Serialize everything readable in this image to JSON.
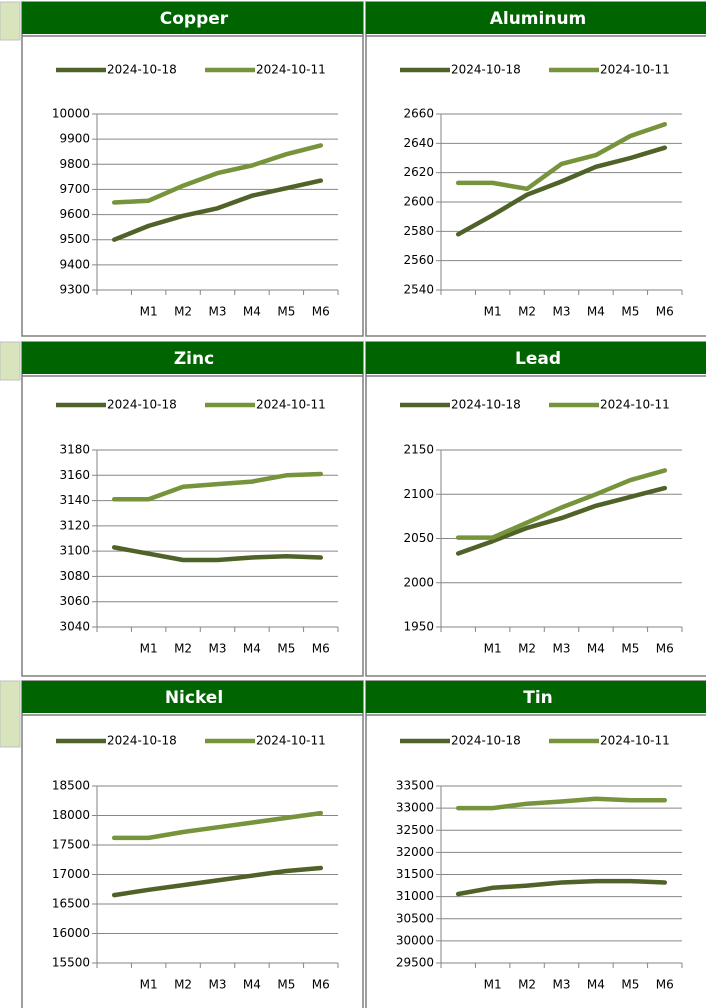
{
  "chart_data": [
    {
      "type": "line",
      "title": "Copper",
      "categories": [
        null,
        "M1",
        "M2",
        "M3",
        "M4",
        "M5",
        "M6"
      ],
      "series": [
        {
          "name": "2024-10-18",
          "color": "#4f6228",
          "values": [
            9500,
            9555,
            9595,
            9625,
            9675,
            9705,
            9735
          ]
        },
        {
          "name": "2024-10-11",
          "color": "#77933c",
          "values": [
            9648,
            9655,
            9715,
            9765,
            9795,
            9840,
            9875
          ]
        }
      ],
      "ylim": [
        9300,
        10000
      ],
      "yticks": [
        9300,
        9400,
        9500,
        9600,
        9700,
        9800,
        9900,
        10000
      ],
      "grid": true
    },
    {
      "type": "line",
      "title": "Aluminum",
      "categories": [
        null,
        "M1",
        "M2",
        "M3",
        "M4",
        "M5",
        "M6"
      ],
      "series": [
        {
          "name": "2024-10-18",
          "color": "#4f6228",
          "values": [
            2578,
            2591,
            2605,
            2614,
            2624,
            2630,
            2637
          ]
        },
        {
          "name": "2024-10-11",
          "color": "#77933c",
          "values": [
            2613,
            2613,
            2609,
            2626,
            2632,
            2645,
            2653
          ]
        }
      ],
      "ylim": [
        2540,
        2660
      ],
      "yticks": [
        2540,
        2560,
        2580,
        2600,
        2620,
        2640,
        2660
      ],
      "grid": true
    },
    {
      "type": "line",
      "title": "Zinc",
      "categories": [
        null,
        "M1",
        "M2",
        "M3",
        "M4",
        "M5",
        "M6"
      ],
      "series": [
        {
          "name": "2024-10-18",
          "color": "#4f6228",
          "values": [
            3103,
            3098,
            3093,
            3093,
            3095,
            3096,
            3095
          ]
        },
        {
          "name": "2024-10-11",
          "color": "#77933c",
          "values": [
            3141,
            3141,
            3151,
            3153,
            3155,
            3160,
            3161
          ]
        }
      ],
      "ylim": [
        3040,
        3180
      ],
      "yticks": [
        3040,
        3060,
        3080,
        3100,
        3120,
        3140,
        3160,
        3180
      ],
      "grid": true
    },
    {
      "type": "line",
      "title": "Lead",
      "categories": [
        null,
        "M1",
        "M2",
        "M3",
        "M4",
        "M5",
        "M6"
      ],
      "series": [
        {
          "name": "2024-10-18",
          "color": "#4f6228",
          "values": [
            2033,
            2047,
            2062,
            2073,
            2087,
            2097,
            2107
          ]
        },
        {
          "name": "2024-10-11",
          "color": "#77933c",
          "values": [
            2051,
            2051,
            2068,
            2085,
            2100,
            2116,
            2127
          ]
        }
      ],
      "ylim": [
        1950,
        2150
      ],
      "yticks": [
        1950,
        2000,
        2050,
        2100,
        2150
      ],
      "grid": true
    },
    {
      "type": "line",
      "title": "Nickel",
      "categories": [
        null,
        "M1",
        "M2",
        "M3",
        "M4",
        "M5",
        "M6"
      ],
      "series": [
        {
          "name": "2024-10-18",
          "color": "#4f6228",
          "values": [
            16650,
            16740,
            16820,
            16900,
            16980,
            17060,
            17110
          ]
        },
        {
          "name": "2024-10-11",
          "color": "#77933c",
          "values": [
            17620,
            17620,
            17720,
            17800,
            17880,
            17960,
            18040
          ]
        }
      ],
      "ylim": [
        15500,
        18500
      ],
      "yticks": [
        15500,
        16000,
        16500,
        17000,
        17500,
        18000,
        18500
      ],
      "grid": true
    },
    {
      "type": "line",
      "title": "Tin",
      "categories": [
        null,
        "M1",
        "M2",
        "M3",
        "M4",
        "M5",
        "M6"
      ],
      "series": [
        {
          "name": "2024-10-18",
          "color": "#4f6228",
          "values": [
            31060,
            31200,
            31250,
            31320,
            31350,
            31350,
            31320
          ]
        },
        {
          "name": "2024-10-11",
          "color": "#77933c",
          "values": [
            33000,
            33000,
            33100,
            33150,
            33210,
            33180,
            33180
          ]
        }
      ],
      "ylim": [
        29500,
        33500
      ],
      "yticks": [
        29500,
        30000,
        30500,
        31000,
        31500,
        32000,
        32500,
        33000,
        33500
      ],
      "grid": true
    }
  ]
}
